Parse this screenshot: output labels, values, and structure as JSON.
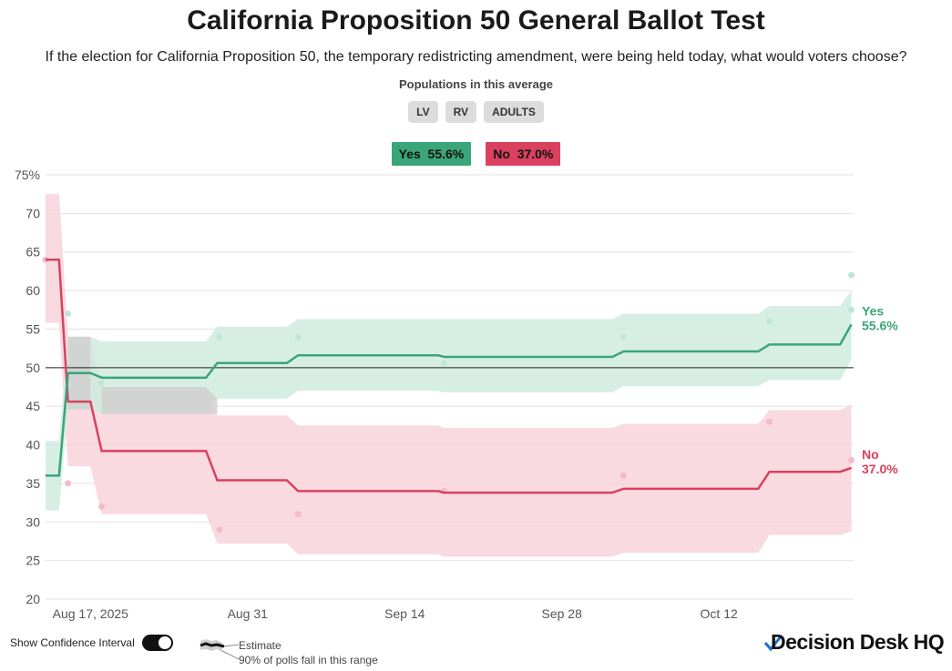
{
  "title": "California Proposition 50 General Ballot Test",
  "subtitle": "If the election for California Proposition 50, the temporary redistricting amendment, were being held today, what would voters choose?",
  "populations": {
    "label": "Populations in this average",
    "options": [
      "LV",
      "RV",
      "ADULTS"
    ]
  },
  "legend": {
    "yes": {
      "name": "Yes",
      "value": "55.6%"
    },
    "no": {
      "name": "No",
      "value": "37.0%"
    }
  },
  "footer": {
    "confidence_label": "Show Confidence Interval",
    "estimate_label": "Estimate",
    "range_label": "90% of polls fall in this range",
    "logo_text": "Decision Desk HQ"
  },
  "colors": {
    "yes": "#3aa57a",
    "yes_band": "#cdeadf",
    "no": "#d9415f",
    "no_band": "#f7d3da",
    "overlap": "#cfcfcf"
  },
  "chart_data": {
    "type": "line",
    "title": "California Proposition 50 General Ballot Test",
    "xlabel": "",
    "ylabel": "",
    "ylim": [
      20,
      75
    ],
    "yticks": [
      20,
      25,
      30,
      35,
      40,
      45,
      50,
      55,
      60,
      65,
      70,
      75
    ],
    "ytick_labels": [
      "20",
      "25",
      "30",
      "35",
      "40",
      "45",
      "50",
      "55",
      "60",
      "65",
      "70",
      "75%"
    ],
    "xlim": [
      0,
      72
    ],
    "xticks": [
      {
        "day": 4,
        "label": "Aug 17, 2025"
      },
      {
        "day": 18,
        "label": "Aug 31"
      },
      {
        "day": 32,
        "label": "Sep 14"
      },
      {
        "day": 46,
        "label": "Sep 28"
      },
      {
        "day": 60,
        "label": "Oct 12"
      }
    ],
    "reference_line": 50,
    "series": [
      {
        "name": "Yes",
        "end_label": "55.6%",
        "points": [
          [
            0,
            36
          ],
          [
            1.2,
            36
          ],
          [
            2,
            49.3
          ],
          [
            4,
            49.3
          ],
          [
            5,
            48.7
          ],
          [
            14.3,
            48.7
          ],
          [
            15.3,
            50.6
          ],
          [
            21.5,
            50.6
          ],
          [
            22.5,
            51.6
          ],
          [
            35,
            51.6
          ],
          [
            35.5,
            51.4
          ],
          [
            50.5,
            51.4
          ],
          [
            51.5,
            52.1
          ],
          [
            63.5,
            52.1
          ],
          [
            64.5,
            53
          ],
          [
            70.8,
            53
          ],
          [
            71.8,
            55.6
          ]
        ],
        "band_upper": [
          [
            0,
            40.5
          ],
          [
            1.2,
            40.5
          ],
          [
            2,
            54
          ],
          [
            4,
            54
          ],
          [
            5,
            53.4
          ],
          [
            14.3,
            53.4
          ],
          [
            15.3,
            55.3
          ],
          [
            21.5,
            55.3
          ],
          [
            22.5,
            56.3
          ],
          [
            50.5,
            56.3
          ],
          [
            51.5,
            57
          ],
          [
            63.5,
            57
          ],
          [
            64.5,
            58
          ],
          [
            70.8,
            58
          ],
          [
            71.8,
            60
          ]
        ],
        "band_lower": [
          [
            0,
            31.5
          ],
          [
            1.2,
            31.5
          ],
          [
            2,
            44.6
          ],
          [
            4,
            44.6
          ],
          [
            5,
            44
          ],
          [
            14.3,
            44
          ],
          [
            15.3,
            46
          ],
          [
            21.5,
            46
          ],
          [
            22.5,
            47
          ],
          [
            35,
            47
          ],
          [
            35.5,
            46.8
          ],
          [
            50.5,
            46.8
          ],
          [
            51.5,
            47.6
          ],
          [
            63.5,
            47.6
          ],
          [
            64.5,
            48.4
          ],
          [
            70.8,
            48.4
          ],
          [
            71.8,
            51
          ]
        ],
        "polls": [
          [
            2,
            57
          ],
          [
            5,
            48
          ],
          [
            15.5,
            54
          ],
          [
            22.5,
            54
          ],
          [
            35.5,
            50.5
          ],
          [
            51.5,
            54
          ],
          [
            64.5,
            56
          ],
          [
            71.8,
            62
          ],
          [
            71.8,
            57.5
          ]
        ]
      },
      {
        "name": "No",
        "end_label": "37.0%",
        "points": [
          [
            0,
            64
          ],
          [
            1.2,
            64
          ],
          [
            2,
            45.6
          ],
          [
            4,
            45.6
          ],
          [
            5,
            39.2
          ],
          [
            14.3,
            39.2
          ],
          [
            15.3,
            35.4
          ],
          [
            21.5,
            35.4
          ],
          [
            22.5,
            34
          ],
          [
            35,
            34
          ],
          [
            35.5,
            33.8
          ],
          [
            50.5,
            33.8
          ],
          [
            51.5,
            34.3
          ],
          [
            63.5,
            34.3
          ],
          [
            64.5,
            36.5
          ],
          [
            70.8,
            36.5
          ],
          [
            71.8,
            37
          ]
        ],
        "band_upper": [
          [
            0,
            72.5
          ],
          [
            1.2,
            72.5
          ],
          [
            2,
            54
          ],
          [
            4,
            54
          ],
          [
            5,
            47.5
          ],
          [
            14.3,
            47.5
          ],
          [
            15.3,
            43.8
          ],
          [
            21.5,
            43.8
          ],
          [
            22.5,
            42.5
          ],
          [
            35,
            42.5
          ],
          [
            35.5,
            42.2
          ],
          [
            50.5,
            42.2
          ],
          [
            51.5,
            42.7
          ],
          [
            63.5,
            42.7
          ],
          [
            64.5,
            44.5
          ],
          [
            70.8,
            44.5
          ],
          [
            71.8,
            45.2
          ]
        ],
        "band_lower": [
          [
            0,
            55.8
          ],
          [
            1.2,
            55.8
          ],
          [
            2,
            37.2
          ],
          [
            4,
            37.2
          ],
          [
            5,
            31
          ],
          [
            14.3,
            31
          ],
          [
            15.3,
            27.2
          ],
          [
            21.5,
            27.2
          ],
          [
            22.5,
            25.8
          ],
          [
            35,
            25.8
          ],
          [
            35.5,
            25.5
          ],
          [
            50.5,
            25.5
          ],
          [
            51.5,
            26
          ],
          [
            63.5,
            26
          ],
          [
            64.5,
            28.3
          ],
          [
            70.8,
            28.3
          ],
          [
            71.8,
            28.8
          ]
        ],
        "polls": [
          [
            0,
            64
          ],
          [
            2,
            35
          ],
          [
            5,
            32
          ],
          [
            15.5,
            29
          ],
          [
            22.5,
            31
          ],
          [
            35.5,
            34
          ],
          [
            51.5,
            36
          ],
          [
            64.5,
            43
          ],
          [
            71.8,
            38
          ]
        ]
      }
    ]
  }
}
